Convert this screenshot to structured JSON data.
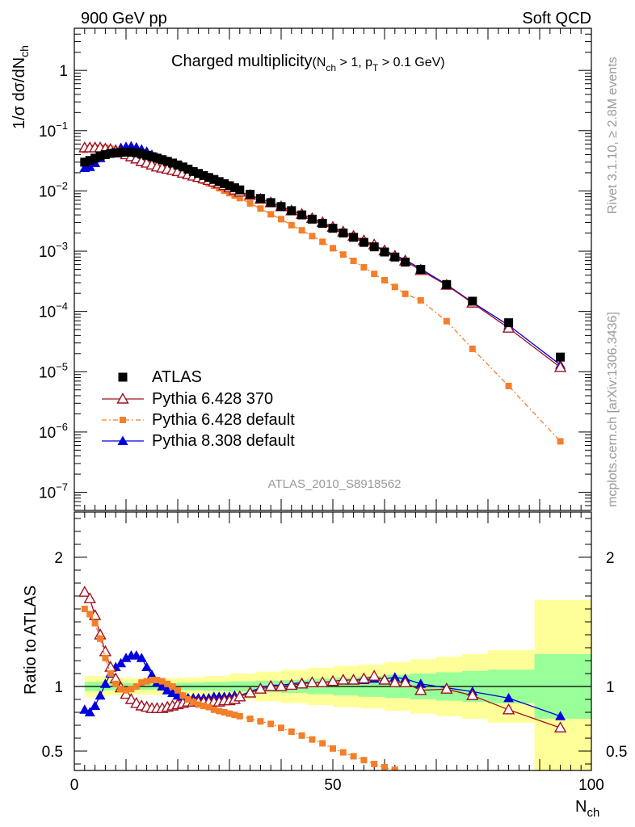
{
  "header": {
    "left": "900 GeV pp",
    "right": "Soft QCD"
  },
  "side_labels": {
    "rivet": "Rivet 3.1.10, ≥ 2.8M events",
    "mcplots": "mcplots.cern.ch [arXiv:1306.3436]"
  },
  "watermark": "ATLAS_2010_S8918562",
  "chart_data": [
    {
      "type": "scatter",
      "panel": "main",
      "title": "Charged multiplicity(N_ch > 1, p_T > 0.1 GeV)",
      "title_main": "Charged multiplicity",
      "title_paren": "(N",
      "title_sub1": "ch",
      "title_mid": " > 1, p",
      "title_sub2": "T",
      "title_end": " > 0.1 GeV)",
      "ylabel": "1/σ dσ/dN_ch",
      "ylabel_main": "1/σ dσ/dN",
      "ylabel_sub": "ch",
      "xlabel": "N_ch",
      "xlim": [
        0,
        100
      ],
      "ylim": [
        5e-08,
        5
      ],
      "yscale": "log",
      "yticks": [
        {
          "v": 1,
          "b": "1",
          "e": ""
        },
        {
          "v": 0.1,
          "b": "10",
          "e": "−1"
        },
        {
          "v": 0.01,
          "b": "10",
          "e": "−2"
        },
        {
          "v": 0.001,
          "b": "10",
          "e": "−3"
        },
        {
          "v": 0.0001,
          "b": "10",
          "e": "−4"
        },
        {
          "v": 1e-05,
          "b": "10",
          "e": "−5"
        },
        {
          "v": 1e-06,
          "b": "10",
          "e": "−6"
        },
        {
          "v": 1e-07,
          "b": "10",
          "e": "−7"
        }
      ],
      "legend_position": "bottom-left",
      "series": [
        {
          "name": "ATLAS",
          "color": "#000000",
          "marker": "square-filled",
          "x": [
            2,
            3,
            4,
            5,
            6,
            7,
            8,
            9,
            10,
            11,
            12,
            13,
            14,
            15,
            16,
            17,
            18,
            19,
            20,
            21,
            22,
            23,
            24,
            25,
            26,
            27,
            28,
            29,
            30,
            31,
            32,
            34,
            36,
            38,
            40,
            42,
            44,
            46,
            48,
            50,
            52,
            54,
            56,
            58,
            60,
            62,
            64,
            67,
            72,
            77,
            84,
            94
          ],
          "y": [
            0.03,
            0.032,
            0.035,
            0.038,
            0.04,
            0.042,
            0.043,
            0.044,
            0.044,
            0.044,
            0.043,
            0.041,
            0.039,
            0.037,
            0.035,
            0.033,
            0.031,
            0.029,
            0.027,
            0.025,
            0.023,
            0.021,
            0.0195,
            0.018,
            0.0167,
            0.0155,
            0.0143,
            0.0132,
            0.0122,
            0.0113,
            0.0104,
            0.0088,
            0.0075,
            0.0064,
            0.0055,
            0.0047,
            0.004,
            0.0034,
            0.0029,
            0.0024,
            0.002,
            0.0017,
            0.0014,
            0.00118,
            0.00097,
            0.0008,
            0.00066,
            0.0005,
            0.00028,
            0.000148,
            6.5e-05,
            1.75e-05
          ]
        },
        {
          "name": "Pythia 6.428 370",
          "color": "#a01020",
          "marker": "triangle-open",
          "line": "solid",
          "x": [
            2,
            3,
            4,
            5,
            6,
            7,
            8,
            9,
            10,
            11,
            12,
            13,
            14,
            15,
            16,
            17,
            18,
            19,
            20,
            21,
            22,
            23,
            24,
            25,
            26,
            27,
            28,
            29,
            30,
            31,
            32,
            34,
            36,
            38,
            40,
            42,
            44,
            46,
            48,
            50,
            52,
            54,
            56,
            58,
            60,
            62,
            64,
            67,
            72,
            77,
            84,
            94
          ],
          "y": [
            0.052,
            0.052,
            0.052,
            0.052,
            0.05,
            0.049,
            0.046,
            0.043,
            0.04,
            0.037,
            0.034,
            0.031,
            0.029,
            0.027,
            0.025,
            0.024,
            0.023,
            0.022,
            0.021,
            0.0198,
            0.0187,
            0.0177,
            0.0168,
            0.0159,
            0.015,
            0.0141,
            0.0132,
            0.0123,
            0.0113,
            0.0104,
            0.0096,
            0.0085,
            0.0073,
            0.0064,
            0.0055,
            0.0047,
            0.0041,
            0.0035,
            0.003,
            0.0025,
            0.0021,
            0.00178,
            0.0015,
            0.00128,
            0.00102,
            0.00083,
            0.00069,
            0.00048,
            0.000273,
            0.000138,
            5.3e-05,
            1.18e-05
          ]
        },
        {
          "name": "Pythia 6.428 default",
          "color": "#f47f2a",
          "marker": "square-small",
          "line": "dashdot",
          "x": [
            2,
            3,
            4,
            5,
            6,
            7,
            8,
            9,
            10,
            11,
            12,
            13,
            14,
            15,
            16,
            17,
            18,
            19,
            20,
            21,
            22,
            23,
            24,
            25,
            26,
            27,
            28,
            29,
            30,
            31,
            32,
            34,
            36,
            38,
            40,
            42,
            44,
            46,
            48,
            50,
            52,
            54,
            56,
            58,
            60,
            62,
            64,
            67,
            72,
            77,
            84,
            94
          ],
          "y": [
            0.048,
            0.05,
            0.052,
            0.052,
            0.052,
            0.05,
            0.048,
            0.046,
            0.044,
            0.043,
            0.041,
            0.04,
            0.038,
            0.036,
            0.033,
            0.031,
            0.028,
            0.026,
            0.024,
            0.0215,
            0.0195,
            0.0177,
            0.016,
            0.0147,
            0.0134,
            0.0122,
            0.0111,
            0.0101,
            0.0092,
            0.0084,
            0.0076,
            0.0062,
            0.0051,
            0.0041,
            0.0034,
            0.0027,
            0.00222,
            0.00178,
            0.00143,
            0.00112,
            0.00088,
            0.00069,
            0.00054,
            0.00042,
            0.00033,
            0.000255,
            0.000196,
            0.000153,
            6.9e-05,
            2.4e-05,
            5.8e-06,
            7e-07
          ]
        },
        {
          "name": "Pythia 8.308 default",
          "color": "#0000dd",
          "marker": "triangle-filled",
          "line": "solid",
          "x": [
            2,
            3,
            4,
            5,
            6,
            7,
            8,
            9,
            10,
            11,
            12,
            13,
            14,
            15,
            16,
            17,
            18,
            19,
            20,
            21,
            22,
            23,
            24,
            25,
            26,
            27,
            28,
            29,
            30,
            31,
            32,
            34,
            36,
            38,
            40,
            42,
            44,
            46,
            48,
            50,
            52,
            54,
            56,
            58,
            60,
            62,
            64,
            67,
            72,
            77,
            84,
            94
          ],
          "y": [
            0.024,
            0.025,
            0.029,
            0.035,
            0.041,
            0.046,
            0.049,
            0.052,
            0.054,
            0.055,
            0.053,
            0.049,
            0.045,
            0.04,
            0.036,
            0.033,
            0.03,
            0.027,
            0.025,
            0.023,
            0.021,
            0.0192,
            0.0178,
            0.0165,
            0.0152,
            0.0142,
            0.0131,
            0.0121,
            0.0112,
            0.0104,
            0.0096,
            0.0085,
            0.0074,
            0.0065,
            0.0055,
            0.0048,
            0.0041,
            0.0035,
            0.00297,
            0.0025,
            0.0021,
            0.00179,
            0.00148,
            0.00125,
            0.00103,
            0.00086,
            0.00072,
            0.00051,
            0.00028,
            0.000142,
            5.9e-05,
            1.3e-05
          ]
        }
      ]
    },
    {
      "type": "line",
      "panel": "ratio",
      "ylabel": "Ratio to ATLAS",
      "xlabel": "N_ch",
      "xlim": [
        0,
        100
      ],
      "ylim": [
        0.35,
        2.35
      ],
      "yticks": [
        0.5,
        1,
        2
      ],
      "xticks": [
        0,
        50,
        100
      ],
      "reference_line": 1,
      "bands": [
        {
          "name": "inner",
          "color": "#99ff99",
          "edges": [
            2,
            6,
            10,
            15,
            20,
            25,
            30,
            35,
            40,
            45,
            50,
            55,
            60,
            65,
            70,
            75,
            80,
            89,
            100
          ],
          "lower": [
            0.965,
            0.97,
            0.975,
            0.975,
            0.97,
            0.965,
            0.96,
            0.955,
            0.95,
            0.94,
            0.93,
            0.92,
            0.91,
            0.9,
            0.89,
            0.88,
            0.87,
            0.75
          ],
          "upper": [
            1.035,
            1.03,
            1.025,
            1.025,
            1.03,
            1.035,
            1.04,
            1.045,
            1.05,
            1.06,
            1.07,
            1.08,
            1.09,
            1.1,
            1.11,
            1.12,
            1.13,
            1.25
          ]
        },
        {
          "name": "outer",
          "color": "#ffff99",
          "edges": [
            2,
            6,
            10,
            15,
            20,
            25,
            30,
            35,
            40,
            45,
            50,
            55,
            60,
            65,
            70,
            75,
            80,
            89,
            100
          ],
          "lower": [
            0.92,
            0.93,
            0.935,
            0.935,
            0.93,
            0.92,
            0.9,
            0.885,
            0.87,
            0.855,
            0.84,
            0.83,
            0.81,
            0.79,
            0.77,
            0.75,
            0.72,
            0.35
          ],
          "upper": [
            1.08,
            1.07,
            1.065,
            1.065,
            1.07,
            1.08,
            1.1,
            1.115,
            1.13,
            1.145,
            1.16,
            1.17,
            1.19,
            1.21,
            1.23,
            1.25,
            1.28,
            1.67
          ]
        }
      ],
      "series": [
        {
          "name": "Pythia 6.428 370",
          "color": "#a01020",
          "marker": "triangle-open",
          "line": "solid",
          "x": [
            2,
            3,
            4,
            5,
            6,
            7,
            8,
            9,
            10,
            11,
            12,
            13,
            14,
            15,
            16,
            17,
            18,
            19,
            20,
            21,
            22,
            23,
            24,
            25,
            26,
            27,
            28,
            29,
            30,
            31,
            32,
            34,
            36,
            38,
            40,
            42,
            44,
            46,
            48,
            50,
            52,
            54,
            56,
            58,
            60,
            62,
            64,
            67,
            72,
            77,
            84,
            94
          ],
          "y": [
            1.73,
            1.68,
            1.55,
            1.4,
            1.27,
            1.15,
            1.06,
            0.99,
            0.94,
            0.9,
            0.87,
            0.85,
            0.84,
            0.83,
            0.83,
            0.83,
            0.84,
            0.85,
            0.86,
            0.87,
            0.88,
            0.88,
            0.88,
            0.88,
            0.88,
            0.88,
            0.88,
            0.89,
            0.89,
            0.9,
            0.92,
            0.95,
            0.98,
            1.0,
            1.0,
            1.01,
            1.02,
            1.03,
            1.03,
            1.04,
            1.05,
            1.05,
            1.06,
            1.08,
            1.05,
            1.03,
            1.03,
            0.97,
            0.98,
            0.93,
            0.82,
            0.68
          ]
        },
        {
          "name": "Pythia 6.428 default",
          "color": "#f47f2a",
          "marker": "square-small",
          "line": "dashdot",
          "x": [
            2,
            3,
            4,
            5,
            6,
            7,
            8,
            9,
            10,
            11,
            12,
            13,
            14,
            15,
            16,
            17,
            18,
            19,
            20,
            21,
            22,
            23,
            24,
            25,
            26,
            27,
            28,
            29,
            30,
            31,
            32,
            34,
            36,
            38,
            40,
            42,
            44,
            46,
            48,
            50,
            52,
            54,
            56,
            58,
            60,
            62
          ],
          "y": [
            1.6,
            1.56,
            1.49,
            1.37,
            1.22,
            1.1,
            1.02,
            0.98,
            0.97,
            0.98,
            1.0,
            1.03,
            1.04,
            1.05,
            1.05,
            1.04,
            1.02,
            1.0,
            0.97,
            0.93,
            0.9,
            0.88,
            0.86,
            0.85,
            0.84,
            0.82,
            0.81,
            0.8,
            0.79,
            0.78,
            0.77,
            0.75,
            0.73,
            0.71,
            0.68,
            0.65,
            0.62,
            0.59,
            0.56,
            0.52,
            0.49,
            0.46,
            0.43,
            0.4,
            0.375,
            0.355
          ]
        },
        {
          "name": "Pythia 8.308 default",
          "color": "#0000dd",
          "marker": "triangle-filled",
          "line": "solid",
          "x": [
            2,
            3,
            4,
            5,
            6,
            7,
            8,
            9,
            10,
            11,
            12,
            13,
            14,
            15,
            16,
            17,
            18,
            19,
            20,
            21,
            22,
            23,
            24,
            25,
            26,
            27,
            28,
            29,
            30,
            31,
            32,
            34,
            36,
            38,
            40,
            42,
            44,
            46,
            48,
            50,
            52,
            54,
            56,
            58,
            60,
            62,
            64,
            67,
            72,
            77,
            84,
            94
          ],
          "y": [
            0.82,
            0.8,
            0.85,
            0.93,
            1.02,
            1.1,
            1.15,
            1.18,
            1.22,
            1.24,
            1.24,
            1.22,
            1.15,
            1.09,
            1.03,
            1.0,
            0.97,
            0.95,
            0.93,
            0.92,
            0.91,
            0.91,
            0.91,
            0.91,
            0.91,
            0.92,
            0.92,
            0.92,
            0.92,
            0.93,
            0.93,
            0.96,
            0.99,
            1.01,
            1.01,
            1.02,
            1.03,
            1.03,
            1.03,
            1.04,
            1.05,
            1.05,
            1.05,
            1.06,
            1.06,
            1.07,
            1.06,
            1.02,
            0.99,
            0.96,
            0.91,
            0.77
          ]
        }
      ]
    }
  ]
}
